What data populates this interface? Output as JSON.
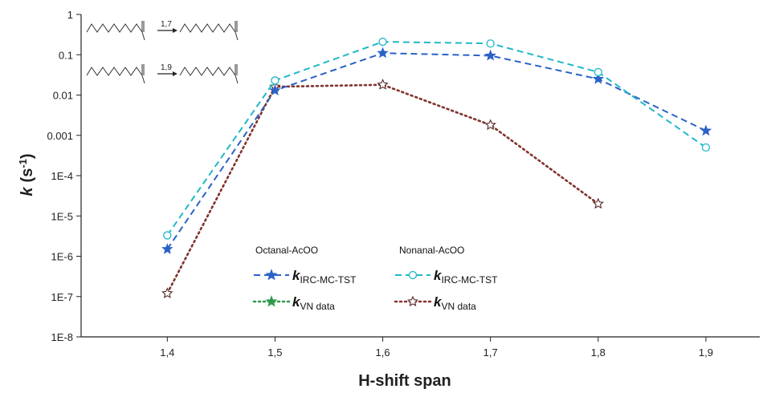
{
  "chart_data": {
    "type": "line",
    "xlabel": "H-shift span",
    "ylabel": "k (s-1)",
    "ylabel_main": "k",
    "ylabel_paren_open": "(s",
    "ylabel_sup": "-1",
    "ylabel_paren_close": ")",
    "yscale": "log",
    "ylim": [
      1e-08,
      1
    ],
    "xlim": [
      1.32,
      1.95
    ],
    "x_ticks": [
      1.4,
      1.5,
      1.6,
      1.7,
      1.8,
      1.9
    ],
    "x_tick_labels": [
      "1,4",
      "1,5",
      "1,6",
      "1,7",
      "1,8",
      "1,9"
    ],
    "y_ticks": [
      1,
      0.1,
      0.01,
      0.001,
      0.0001,
      1e-05,
      1e-06,
      1e-07,
      1e-08
    ],
    "y_tick_labels": [
      "1",
      "0.1",
      "0.01",
      "0.001",
      "1E-4",
      "1E-5",
      "1E-6",
      "1E-7",
      "1E-8"
    ],
    "grid": false,
    "legend_groups": [
      {
        "title": "Octanal-AcOO"
      },
      {
        "title": "Nonanal-AcOO"
      }
    ],
    "series": [
      {
        "name": "kIRC-MC-TST",
        "name_main": "k",
        "name_sub": "IRC-MC-TST",
        "group": "Octanal-AcOO",
        "color": "#2a62c9",
        "dash": "dashed",
        "marker": "star-filled",
        "x": [
          1.4,
          1.5,
          1.6,
          1.7,
          1.8,
          1.9
        ],
        "y": [
          1.5e-06,
          0.013,
          0.11,
          0.095,
          0.025,
          0.0013
        ]
      },
      {
        "name": "kVN data",
        "name_main": "k",
        "name_sub": "VN data",
        "group": "Octanal-AcOO",
        "color": "#2e9a4a",
        "dash": "dotted",
        "marker": "star-filled",
        "x": [
          1.4,
          1.5,
          1.6,
          1.7,
          1.8
        ],
        "y": [
          1.2e-07,
          0.016,
          0.018,
          0.0018,
          2e-05
        ]
      },
      {
        "name": "kIRC-MC-TST",
        "name_main": "k",
        "name_sub": "IRC-MC-TST",
        "group": "Nonanal-AcOO",
        "color": "#20b8c8",
        "dash": "dashed",
        "marker": "circle-open",
        "x": [
          1.4,
          1.5,
          1.6,
          1.7,
          1.8,
          1.9
        ],
        "y": [
          3.3e-06,
          0.023,
          0.21,
          0.19,
          0.037,
          0.0005
        ]
      },
      {
        "name": "kVN data",
        "name_main": "k",
        "name_sub": "VN data",
        "group": "Nonanal-AcOO",
        "color": "#8a2f2f",
        "dash": "dotted",
        "marker": "star-open",
        "x": [
          1.4,
          1.5,
          1.6,
          1.7,
          1.8
        ],
        "y": [
          1.2e-07,
          0.016,
          0.018,
          0.0018,
          2e-05
        ]
      }
    ],
    "reaction_inset": [
      {
        "label": "1,7"
      },
      {
        "label": "1,9"
      }
    ]
  }
}
